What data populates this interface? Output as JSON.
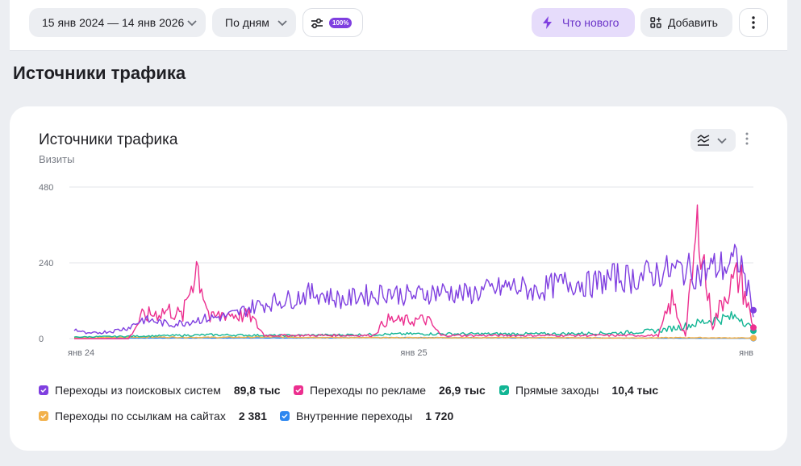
{
  "toolbar": {
    "period": "15 янв 2024 — 14 янв 2026",
    "grouping": "По дням",
    "sampling_badge": "100%",
    "news_label": "Что нового",
    "add_label": "Добавить"
  },
  "page": {
    "title": "Источники трафика"
  },
  "card": {
    "title": "Источники трафика",
    "subtitle": "Визиты"
  },
  "chart_data": {
    "type": "line",
    "x_range": [
      "2024-01-15",
      "2026-01-14"
    ],
    "x_ticks": [
      "янв 24",
      "янв 25",
      "янв"
    ],
    "y_ticks": [
      "480",
      "240",
      "0"
    ],
    "ylim": [
      0,
      480
    ],
    "grid": true,
    "legend_position": "bottom",
    "series": [
      {
        "name": "Переходы из поисковых систем",
        "total": "89,8 тыс",
        "color": "#7f3fe0",
        "points": [
          [
            0,
            30
          ],
          [
            2,
            15
          ],
          [
            4,
            20
          ],
          [
            6,
            25
          ],
          [
            8,
            35
          ],
          [
            10,
            60
          ],
          [
            12,
            55
          ],
          [
            14,
            45
          ],
          [
            16,
            50
          ],
          [
            18,
            60
          ],
          [
            20,
            65
          ],
          [
            22,
            70
          ],
          [
            24,
            80
          ],
          [
            26,
            100
          ],
          [
            28,
            110
          ],
          [
            30,
            120
          ],
          [
            32,
            125
          ],
          [
            34,
            140
          ],
          [
            36,
            145
          ],
          [
            38,
            130
          ],
          [
            40,
            120
          ],
          [
            42,
            140
          ],
          [
            44,
            135
          ],
          [
            46,
            150
          ],
          [
            48,
            140
          ],
          [
            50,
            135
          ],
          [
            52,
            145
          ],
          [
            54,
            150
          ],
          [
            56,
            145
          ],
          [
            58,
            140
          ],
          [
            60,
            150
          ],
          [
            62,
            155
          ],
          [
            64,
            165
          ],
          [
            66,
            160
          ],
          [
            68,
            150
          ],
          [
            70,
            165
          ],
          [
            72,
            175
          ],
          [
            74,
            180
          ],
          [
            76,
            170
          ],
          [
            78,
            185
          ],
          [
            80,
            195
          ],
          [
            82,
            190
          ],
          [
            84,
            200
          ],
          [
            86,
            210
          ],
          [
            88,
            215
          ],
          [
            90,
            220
          ],
          [
            92,
            205
          ],
          [
            94,
            225
          ],
          [
            96,
            230
          ],
          [
            98,
            250
          ],
          [
            100,
            90
          ]
        ]
      },
      {
        "name": "Переходы по рекламе",
        "total": "26,9 тыс",
        "color": "#ec2f8f",
        "points": [
          [
            0,
            0
          ],
          [
            8,
            0
          ],
          [
            10,
            70
          ],
          [
            12,
            80
          ],
          [
            14,
            90
          ],
          [
            16,
            70
          ],
          [
            18,
            240
          ],
          [
            20,
            60
          ],
          [
            22,
            80
          ],
          [
            26,
            70
          ],
          [
            28,
            10
          ],
          [
            44,
            10
          ],
          [
            46,
            60
          ],
          [
            48,
            55
          ],
          [
            52,
            60
          ],
          [
            54,
            10
          ],
          [
            74,
            10
          ],
          [
            86,
            10
          ],
          [
            88,
            120
          ],
          [
            90,
            10
          ],
          [
            92,
            390
          ],
          [
            93,
            180
          ],
          [
            94,
            40
          ],
          [
            96,
            150
          ],
          [
            98,
            200
          ],
          [
            100,
            35
          ]
        ]
      },
      {
        "name": "Прямые заходы",
        "total": "10,4 тыс",
        "color": "#12b594",
        "points": [
          [
            0,
            5
          ],
          [
            10,
            8
          ],
          [
            20,
            12
          ],
          [
            30,
            10
          ],
          [
            40,
            12
          ],
          [
            50,
            15
          ],
          [
            60,
            15
          ],
          [
            70,
            15
          ],
          [
            80,
            18
          ],
          [
            86,
            25
          ],
          [
            90,
            40
          ],
          [
            94,
            60
          ],
          [
            98,
            70
          ],
          [
            100,
            25
          ]
        ]
      },
      {
        "name": "Переходы по ссылкам на сайтах",
        "total": "2 381",
        "color": "#f2b14b",
        "points": [
          [
            0,
            2
          ],
          [
            10,
            5
          ],
          [
            20,
            4
          ],
          [
            30,
            5
          ],
          [
            40,
            3
          ],
          [
            50,
            3
          ],
          [
            60,
            3
          ],
          [
            70,
            3
          ],
          [
            80,
            2
          ],
          [
            90,
            3
          ],
          [
            100,
            2
          ]
        ]
      },
      {
        "name": "Внутренние переходы",
        "total": "1 720",
        "color": "#2d87f0",
        "points": [
          [
            0,
            2
          ],
          [
            20,
            2
          ],
          [
            40,
            3
          ],
          [
            60,
            3
          ],
          [
            80,
            2
          ],
          [
            100,
            1
          ]
        ]
      }
    ]
  }
}
